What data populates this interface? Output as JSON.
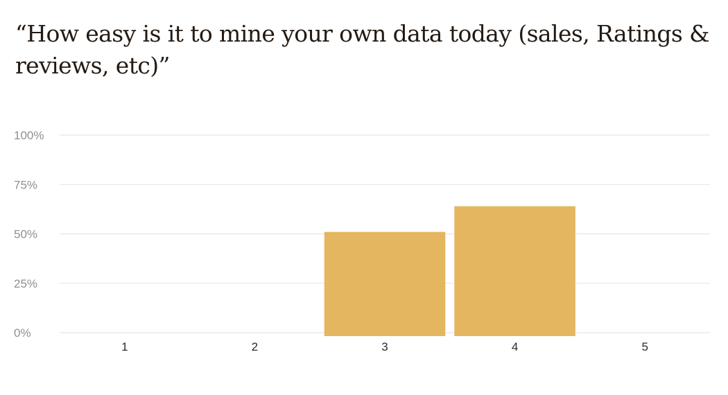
{
  "title": "“How easy is it to mine your own data today (sales, Ratings & reviews, etc)”",
  "colors": {
    "bar": "#e5b660",
    "gridline": "#e2e2e2",
    "y_tick_text": "#8f8f8f",
    "x_tick_text": "#2b2b2b",
    "title_text": "#231a12"
  },
  "chart_data": {
    "type": "bar",
    "title": "“How easy is it to mine your own data today (sales, Ratings & reviews, etc)”",
    "categories": [
      "1",
      "2",
      "3",
      "4",
      "5"
    ],
    "values": [
      0,
      0,
      51,
      64,
      0
    ],
    "value_unit": "%",
    "xlabel": "",
    "ylabel": "",
    "ylim": [
      0,
      100
    ],
    "yticks": [
      0,
      25,
      50,
      75,
      100
    ],
    "ytick_labels": [
      "0%",
      "25%",
      "50%",
      "75%",
      "100%"
    ],
    "grid": true,
    "legend": "none"
  }
}
